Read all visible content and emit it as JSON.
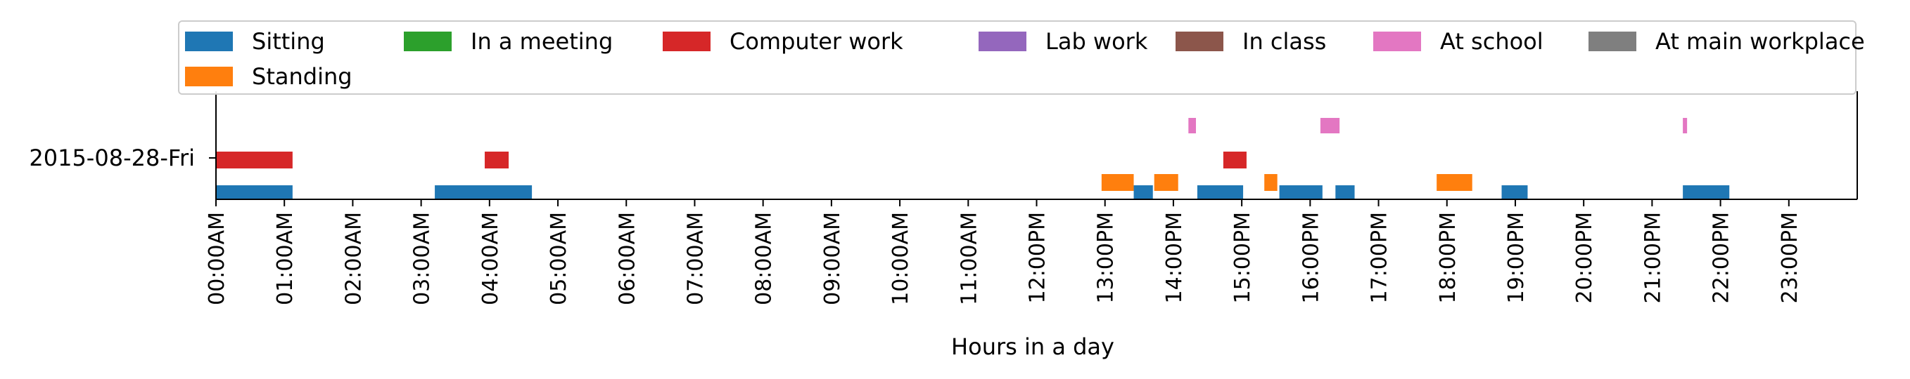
{
  "chart_data": {
    "type": "timeline",
    "xlabel": "Hours in a day",
    "ylabel": "",
    "row_label": "2015-08-28-Fri",
    "xlim": [
      0,
      24
    ],
    "x_tick_labels": [
      "00:00AM",
      "01:00AM",
      "02:00AM",
      "03:00AM",
      "04:00AM",
      "05:00AM",
      "06:00AM",
      "07:00AM",
      "08:00AM",
      "09:00AM",
      "10:00AM",
      "11:00AM",
      "12:00PM",
      "13:00PM",
      "14:00PM",
      "15:00PM",
      "16:00PM",
      "17:00PM",
      "18:00PM",
      "19:00PM",
      "20:00PM",
      "21:00PM",
      "22:00PM",
      "23:00PM"
    ],
    "legend_position": "top",
    "series": [
      {
        "name": "Sitting",
        "color": "#1f77b4",
        "intervals": [
          [
            0.0,
            1.12
          ],
          [
            3.2,
            4.62
          ],
          [
            13.42,
            13.7
          ],
          [
            14.35,
            15.02
          ],
          [
            15.55,
            16.18
          ],
          [
            16.37,
            16.65
          ],
          [
            18.8,
            19.18
          ],
          [
            21.45,
            22.13
          ]
        ]
      },
      {
        "name": "Standing",
        "color": "#ff7f0e",
        "intervals": [
          [
            12.95,
            13.42
          ],
          [
            13.72,
            14.07
          ],
          [
            15.33,
            15.52
          ],
          [
            17.85,
            18.37
          ]
        ]
      },
      {
        "name": "In a meeting",
        "color": "#2ca02c",
        "intervals": []
      },
      {
        "name": "Computer work",
        "color": "#d62728",
        "intervals": [
          [
            0.0,
            1.12
          ],
          [
            3.93,
            4.28
          ],
          [
            14.73,
            15.07
          ]
        ]
      },
      {
        "name": "Lab work",
        "color": "#9467bd",
        "intervals": []
      },
      {
        "name": "In class",
        "color": "#8c564b",
        "intervals": []
      },
      {
        "name": "At school",
        "color": "#e377c2",
        "intervals": [
          [
            14.22,
            14.33
          ],
          [
            16.15,
            16.43
          ],
          [
            21.45,
            21.5
          ]
        ]
      },
      {
        "name": "At main workplace",
        "color": "#7f7f7f",
        "intervals": []
      }
    ]
  }
}
